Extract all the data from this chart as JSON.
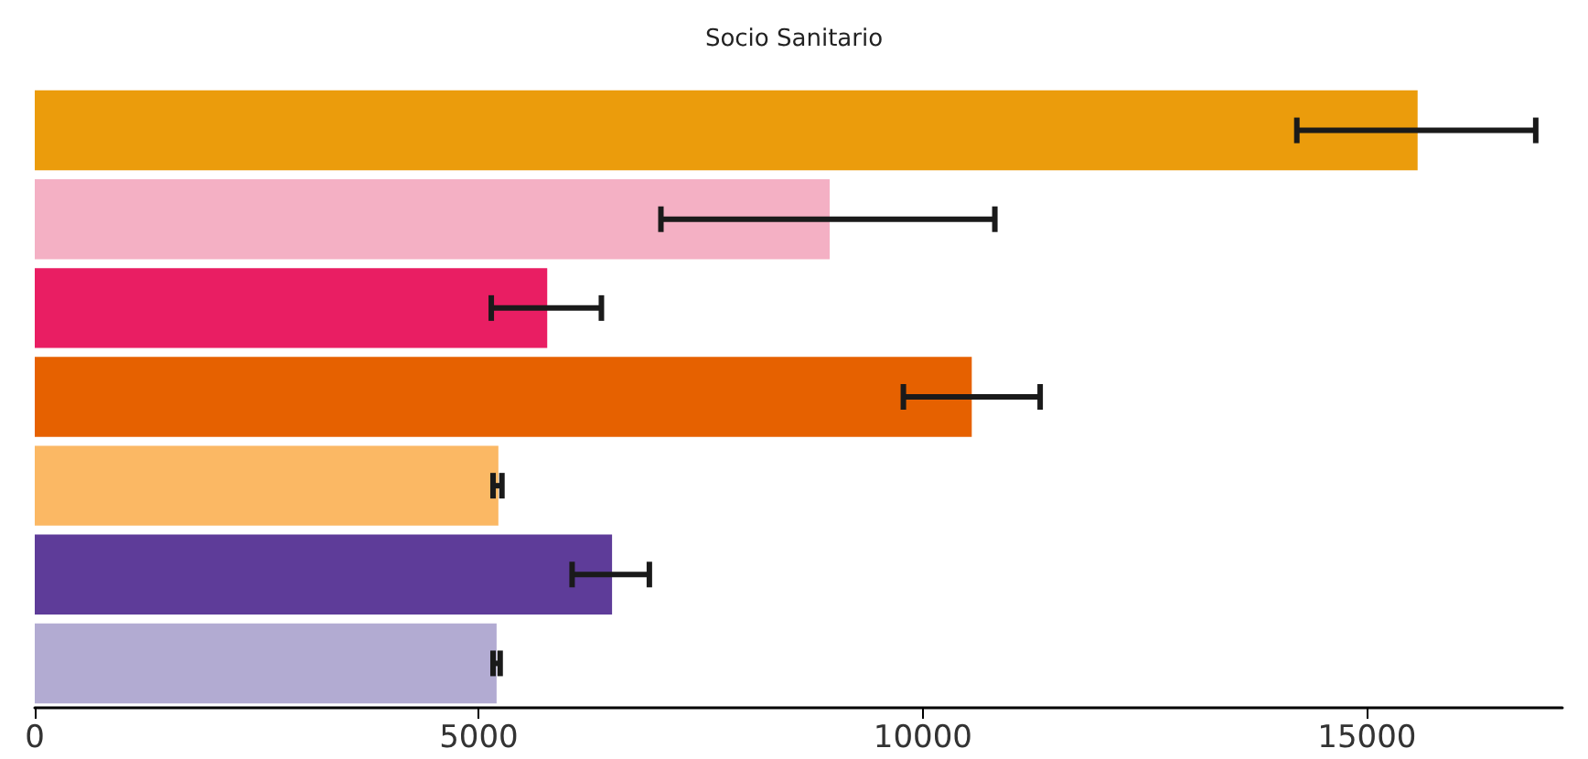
{
  "chart_data": {
    "type": "bar",
    "orientation": "horizontal",
    "title": "Socio Sanitario",
    "categories": [
      null,
      null,
      null,
      null,
      null,
      null,
      null
    ],
    "values": [
      15570,
      8950,
      5770,
      10550,
      5220,
      6500,
      5200
    ],
    "colors": [
      "#eb9c0c",
      "#f4b0c4",
      "#e91e63",
      "#e66100",
      "#fbb864",
      "#5e3c99",
      "#b2abd2"
    ],
    "errors": [
      [
        14210,
        16900
      ],
      [
        7050,
        10810
      ],
      [
        5140,
        6380
      ],
      [
        9780,
        11320
      ],
      [
        5160,
        5260
      ],
      [
        6050,
        6920
      ],
      [
        5160,
        5240
      ]
    ],
    "xlim": [
      0,
      17200
    ],
    "xticks": [
      0,
      5000,
      10000,
      15000
    ],
    "grid": false
  }
}
